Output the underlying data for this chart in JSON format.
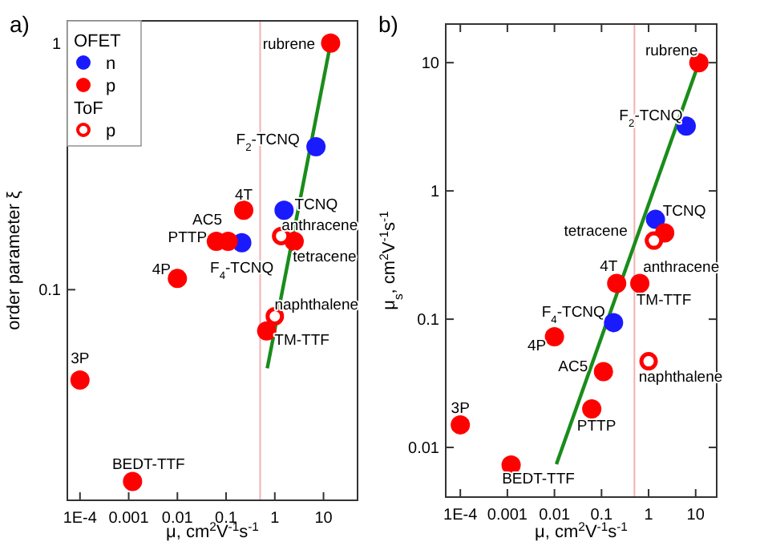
{
  "chart_data": [
    {
      "type": "scatter",
      "xlabel": "μ, cm$^{2}$V$^{-1}$s$^{-1}$",
      "ylabel": "order parameter ξ",
      "log": "xy",
      "xlim": [
        5.5e-05,
        50
      ],
      "ylim": [
        0.014,
        1.23
      ],
      "xticks": [
        {
          "value": 0.0001,
          "label": "1E-4"
        },
        0.001,
        0.01,
        0.1,
        1,
        10
      ],
      "yticks": [
        0.1,
        1
      ],
      "legend": "top left",
      "legend_title": "OFET",
      "marker": "circle",
      "series": [
        {
          "name": "n",
          "color": "#1a1aff",
          "x": [
            7,
            1.55,
            0.21
          ],
          "values": [
            0.38,
            0.21,
            0.155
          ]
        },
        {
          "name": "p",
          "color": "#ff0000",
          "x": [
            14,
            0.23,
            0.063,
            0.11,
            2.5,
            0.01,
            0.68,
            0.0001,
            0.0012
          ],
          "values": [
            1,
            0.21,
            0.157,
            0.157,
            0.157,
            0.111,
            0.068,
            0.043,
            0.0167
          ]
        },
        {
          "name": "p",
          "color": "#ff0000",
          "x": [
            1.35,
            1
          ],
          "values": [
            0.165,
            0.078
          ]
        },
        {
          "type": "line",
          "color": "#1a8c1a",
          "marker": "none",
          "x": [
            0.7,
            14
          ],
          "values": [
            0.048,
            1
          ]
        }
      ],
      "ref_lines": [
        {
          "axis": "x",
          "value": 0.5,
          "color": "#f4b0b0"
        }
      ],
      "annotations": [
        "a)",
        "ToF",
        {
          "text": "rubrene",
          "x": 14,
          "y": 1
        },
        {
          "text": "F$_{2}$-TCNQ",
          "x": 7,
          "y": 0.38
        },
        {
          "text": "TCNQ",
          "x": 1.55,
          "y": 0.21
        },
        {
          "text": "anthracene",
          "x": 1.35,
          "y": 0.165
        },
        {
          "text": "tetracene",
          "x": 2.5,
          "y": 0.157
        },
        {
          "text": "4T",
          "x": 0.23,
          "y": 0.21
        },
        {
          "text": "AC5",
          "x": 0.11,
          "y": 0.157
        },
        {
          "text": "PTTP",
          "x": 0.063,
          "y": 0.157
        },
        {
          "text": "F$_{4}$-TCNQ",
          "x": 0.21,
          "y": 0.155
        },
        {
          "text": "4P",
          "x": 0.01,
          "y": 0.111
        },
        {
          "text": "naphthalene",
          "x": 1,
          "y": 0.078
        },
        {
          "text": "TM-TTF",
          "x": 0.68,
          "y": 0.068
        },
        {
          "text": "3P",
          "x": 0.0001,
          "y": 0.043
        },
        {
          "text": "BEDT-TTF",
          "x": 0.0012,
          "y": 0.0167
        }
      ]
    },
    {
      "type": "scatter",
      "xlabel": "μ, cm$^{2}$V$^{-1}$s$^{-1}$",
      "ylabel": "μ$_{s}$, cm$^{2}$V$^{-1}$s$^{-1}$",
      "log": "xy",
      "xlim": [
        4.9e-05,
        28
      ],
      "ylim": [
        0.0041,
        20
      ],
      "xticks": [
        {
          "value": 0.0001,
          "label": "1E-4"
        },
        0.001,
        0.01,
        0.1,
        1,
        10
      ],
      "yticks": [
        0.01,
        0.1,
        1,
        10
      ],
      "marker": "circle",
      "series": [
        {
          "color": "#1a1aff",
          "x": [
            6.3,
            1.4,
            0.18
          ],
          "values": [
            3.2,
            0.6,
            0.094
          ]
        },
        {
          "color": "#ff0000",
          "x": [
            11.7,
            2.2,
            0.21,
            0.65,
            0.01,
            0.11,
            0.062,
            0.0001,
            0.0012
          ],
          "values": [
            10,
            0.47,
            0.19,
            0.19,
            0.073,
            0.039,
            0.02,
            0.015,
            0.0073
          ]
        },
        {
          "color": "#ff0000",
          "x": [
            1.3,
            1
          ],
          "values": [
            0.41,
            0.047
          ]
        },
        {
          "type": "line",
          "color": "#1a8c1a",
          "marker": "none",
          "x": [
            0.011,
            11.7
          ],
          "values": [
            0.0074,
            10
          ]
        }
      ],
      "ref_lines": [
        {
          "axis": "x",
          "value": 0.5,
          "color": "#f4b0b0"
        }
      ],
      "annotations": [
        "b)",
        {
          "text": "rubrene",
          "x": 11.7,
          "y": 10
        },
        {
          "text": "F$_{2}$-TCNQ",
          "x": 6.3,
          "y": 3.2
        },
        {
          "text": "TCNQ",
          "x": 1.4,
          "y": 0.6
        },
        {
          "text": "tetracene",
          "x": 2.2,
          "y": 0.47
        },
        {
          "text": "anthracene",
          "x": 1.3,
          "y": 0.41
        },
        {
          "text": "4T",
          "x": 0.21,
          "y": 0.19
        },
        {
          "text": "TM-TTF",
          "x": 0.65,
          "y": 0.19
        },
        {
          "text": "F$_{4}$-TCNQ",
          "x": 0.18,
          "y": 0.094
        },
        {
          "text": "4P",
          "x": 0.01,
          "y": 0.073
        },
        {
          "text": "AC5",
          "x": 0.11,
          "y": 0.039
        },
        {
          "text": "naphthalene",
          "x": 1,
          "y": 0.047
        },
        {
          "text": "PTTP",
          "x": 0.062,
          "y": 0.02
        },
        {
          "text": "3P",
          "x": 0.0001,
          "y": 0.015
        },
        {
          "text": "BEDT-TTF",
          "x": 0.0012,
          "y": 0.0073
        }
      ]
    }
  ]
}
